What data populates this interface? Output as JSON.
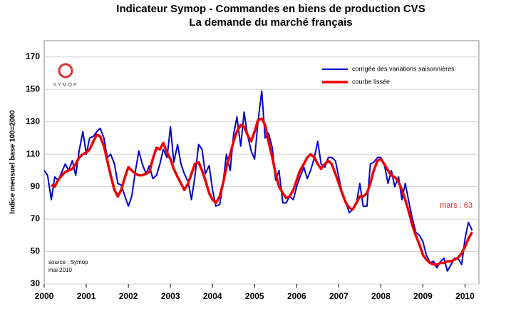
{
  "chart_data": {
    "type": "line",
    "title": "Indicateur Symop - Commandes en biens de production CVS",
    "subtitle": "La demande du marché français",
    "y_label": "Indice mensuel base 100=2000",
    "annotations": [
      "mars : 63",
      "source : Symop",
      "mai 2010",
      "SYMOP"
    ],
    "x": [
      2000,
      2000.08,
      2000.17,
      2000.25,
      2000.33,
      2000.42,
      2000.5,
      2000.58,
      2000.67,
      2000.75,
      2000.83,
      2000.92,
      2001,
      2001.08,
      2001.17,
      2001.25,
      2001.33,
      2001.42,
      2001.5,
      2001.58,
      2001.67,
      2001.75,
      2001.83,
      2001.92,
      2002,
      2002.08,
      2002.17,
      2002.25,
      2002.33,
      2002.42,
      2002.5,
      2002.58,
      2002.67,
      2002.75,
      2002.83,
      2002.92,
      2003,
      2003.08,
      2003.17,
      2003.25,
      2003.33,
      2003.42,
      2003.5,
      2003.58,
      2003.67,
      2003.75,
      2003.83,
      2003.92,
      2004,
      2004.08,
      2004.17,
      2004.25,
      2004.33,
      2004.42,
      2004.5,
      2004.58,
      2004.67,
      2004.75,
      2004.83,
      2004.92,
      2005,
      2005.08,
      2005.17,
      2005.25,
      2005.33,
      2005.42,
      2005.5,
      2005.58,
      2005.67,
      2005.75,
      2005.83,
      2005.92,
      2006,
      2006.08,
      2006.17,
      2006.25,
      2006.33,
      2006.42,
      2006.5,
      2006.58,
      2006.67,
      2006.75,
      2006.83,
      2006.92,
      2007,
      2007.08,
      2007.17,
      2007.25,
      2007.33,
      2007.42,
      2007.5,
      2007.58,
      2007.67,
      2007.75,
      2007.83,
      2007.92,
      2008,
      2008.08,
      2008.17,
      2008.25,
      2008.33,
      2008.42,
      2008.5,
      2008.58,
      2008.67,
      2008.75,
      2008.83,
      2008.92,
      2009,
      2009.08,
      2009.17,
      2009.25,
      2009.33,
      2009.42,
      2009.5,
      2009.58,
      2009.67,
      2009.75,
      2009.83,
      2009.92,
      2010,
      2010.08,
      2010.17
    ],
    "series": [
      {
        "name": "corrigée des variations saisonnières",
        "color": "#0000cc",
        "values": [
          100,
          97,
          82,
          96,
          94,
          99,
          104,
          100,
          106,
          97,
          112,
          124,
          110,
          120,
          121,
          124,
          126,
          120,
          108,
          110,
          104,
          92,
          91,
          84,
          78,
          84,
          100,
          112,
          104,
          98,
          103,
          95,
          97,
          104,
          113,
          108,
          127,
          105,
          116,
          104,
          98,
          93,
          82,
          96,
          116,
          113,
          98,
          103,
          88,
          78,
          79,
          92,
          110,
          100,
          122,
          133,
          115,
          136,
          122,
          112,
          107,
          130,
          149,
          120,
          123,
          114,
          94,
          100,
          80,
          80,
          84,
          82,
          90,
          96,
          102,
          95,
          100,
          108,
          118,
          104,
          102,
          108,
          108,
          106,
          96,
          86,
          80,
          74,
          76,
          80,
          92,
          78,
          78,
          104,
          105,
          108,
          108,
          104,
          92,
          100,
          90,
          96,
          82,
          92,
          80,
          70,
          62,
          60,
          56,
          48,
          43,
          44,
          40,
          44,
          46,
          38,
          42,
          46,
          46,
          42,
          58,
          68,
          63
        ]
      },
      {
        "name": "courbe lissée",
        "color": "#ee0000",
        "values": [
          null,
          null,
          91,
          90,
          94,
          97,
          99,
          100,
          101,
          104,
          108,
          110,
          111,
          113,
          118,
          122,
          121,
          115,
          106,
          97,
          88,
          84,
          88,
          96,
          102,
          100,
          98,
          97,
          97,
          98,
          99,
          107,
          114,
          113,
          117,
          111,
          107,
          101,
          96,
          92,
          88,
          92,
          98,
          104,
          105,
          100,
          94,
          86,
          82,
          80,
          84,
          92,
          102,
          110,
          118,
          124,
          128,
          127,
          122,
          118,
          124,
          131,
          132,
          128,
          118,
          108,
          98,
          90,
          86,
          83,
          84,
          88,
          94,
          100,
          104,
          108,
          110,
          108,
          104,
          101,
          104,
          106,
          104,
          98,
          92,
          86,
          80,
          77,
          76,
          80,
          84,
          84,
          86,
          92,
          100,
          106,
          107,
          104,
          100,
          97,
          96,
          93,
          88,
          82,
          74,
          66,
          60,
          54,
          48,
          45,
          43,
          42,
          42,
          43,
          43,
          44,
          44,
          45,
          46,
          49,
          53,
          58,
          62
        ]
      }
    ],
    "xlim": [
      2000,
      2010.33
    ],
    "xticks": [
      2000,
      2001,
      2002,
      2003,
      2004,
      2005,
      2006,
      2007,
      2008,
      2009,
      2010
    ],
    "ylim": [
      30,
      180
    ],
    "yticks": [
      30,
      50,
      70,
      90,
      110,
      130,
      150,
      170
    ],
    "grid": true
  }
}
